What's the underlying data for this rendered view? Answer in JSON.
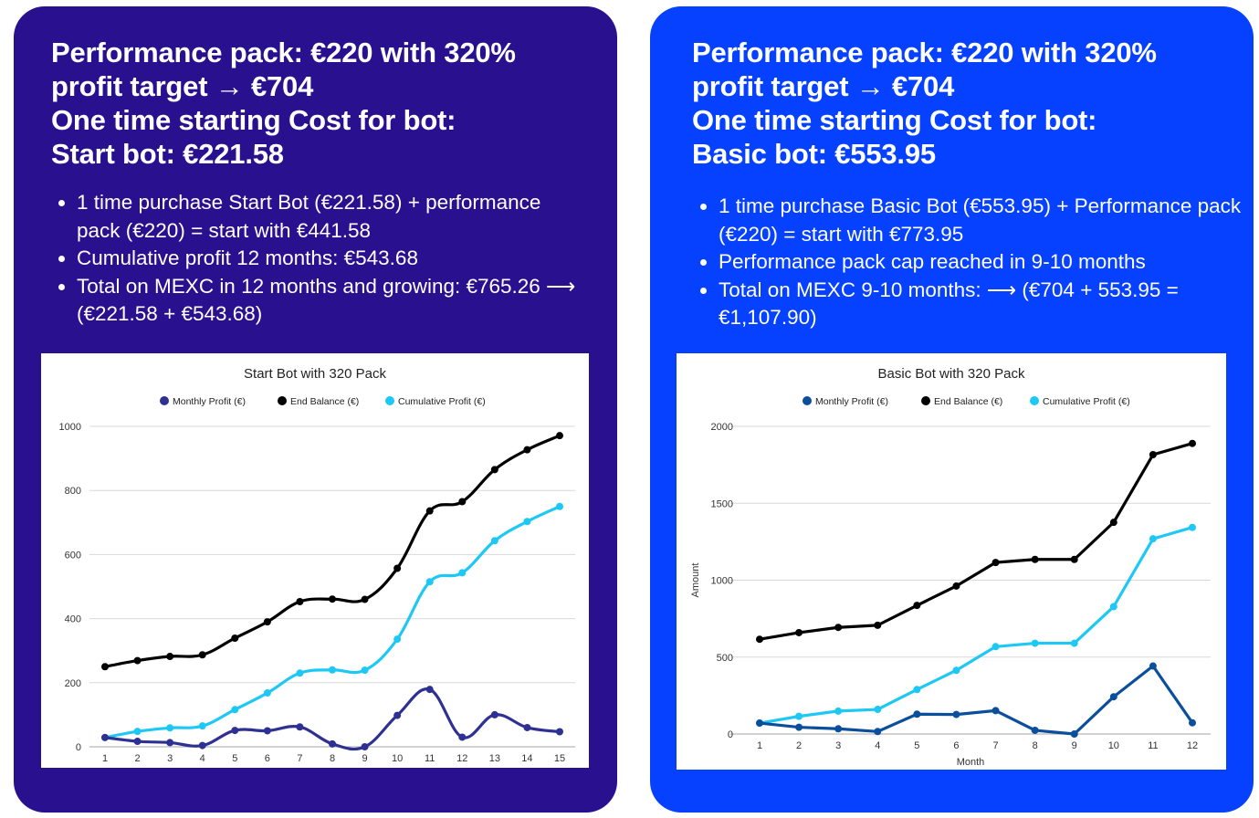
{
  "cards": [
    {
      "id": "left",
      "background": "#28108f",
      "heading_lines": [
        "Performance pack: €220 with 320%",
        "profit target → €704",
        "One time starting Cost for bot:",
        "Start bot: €221.58"
      ],
      "bullets": [
        "1 time purchase Start Bot (€221.58) + performance pack (€220) = start with €441.58",
        "Cumulative profit 12 months: €543.68",
        "Total on MEXC in 12 months and growing: €765.26 ⟶ (€221.58 + €543.68)"
      ]
    },
    {
      "id": "right",
      "background": "#0541ff",
      "heading_lines": [
        "Performance pack: €220 with 320%",
        "profit target → €704",
        "One time starting Cost for bot:",
        "Basic bot: €553.95"
      ],
      "bullets": [
        "1 time purchase Basic Bot (€553.95) + Performance pack (€220) = start with €773.95",
        "Performance pack cap reached in 9-10 months",
        "Total on MEXC 9-10 months: ⟶ (€704 + 553.95 = €1,107.90)"
      ]
    }
  ],
  "chart_data": [
    {
      "type": "line",
      "title": "Start Bot with 320 Pack",
      "xlabel": "",
      "ylabel": "",
      "x": [
        1,
        2,
        3,
        4,
        5,
        6,
        7,
        8,
        9,
        10,
        11,
        12,
        13,
        14,
        15
      ],
      "ylim": [
        0,
        1000
      ],
      "yticks": [
        0,
        200,
        400,
        600,
        800,
        1000
      ],
      "grid": true,
      "legend": "top",
      "smooth": true,
      "series": [
        {
          "name": "Monthly Profit (€)",
          "color": "#2e3192",
          "values": [
            29,
            17,
            13,
            4,
            51,
            50,
            62,
            9,
            0,
            98,
            179,
            30,
            100,
            60,
            47
          ]
        },
        {
          "name": "End Balance (€)",
          "color": "#000000",
          "values": [
            250,
            269,
            282,
            287,
            339,
            390,
            453,
            461,
            460,
            557,
            736,
            765,
            865,
            927,
            971
          ]
        },
        {
          "name": "Cumulative Profit (€)",
          "color": "#1ec8f5",
          "values": [
            29,
            48,
            59,
            65,
            116,
            168,
            230,
            240,
            239,
            336,
            515,
            543,
            643,
            703,
            750
          ]
        }
      ]
    },
    {
      "type": "line",
      "title": "Basic Bot with 320 Pack",
      "xlabel": "Month",
      "ylabel": "Amount",
      "x": [
        1,
        2,
        3,
        4,
        5,
        6,
        7,
        8,
        9,
        10,
        11,
        12
      ],
      "ylim": [
        0,
        2000
      ],
      "yticks": [
        0,
        500,
        1000,
        1500,
        2000
      ],
      "grid": true,
      "legend": "top",
      "smooth": false,
      "series": [
        {
          "name": "Monthly Profit (€)",
          "color": "#0b4f9c",
          "values": [
            71,
            44,
            34,
            16,
            129,
            127,
            152,
            24,
            0,
            242,
            442,
            73
          ]
        },
        {
          "name": "End Balance (€)",
          "color": "#000000",
          "values": [
            616,
            659,
            693,
            707,
            836,
            962,
            1115,
            1135,
            1135,
            1376,
            1816,
            1889
          ]
        },
        {
          "name": "Cumulative Profit (€)",
          "color": "#1ec8f5",
          "values": [
            71,
            115,
            149,
            160,
            289,
            414,
            568,
            590,
            590,
            828,
            1269,
            1343
          ]
        }
      ]
    }
  ]
}
